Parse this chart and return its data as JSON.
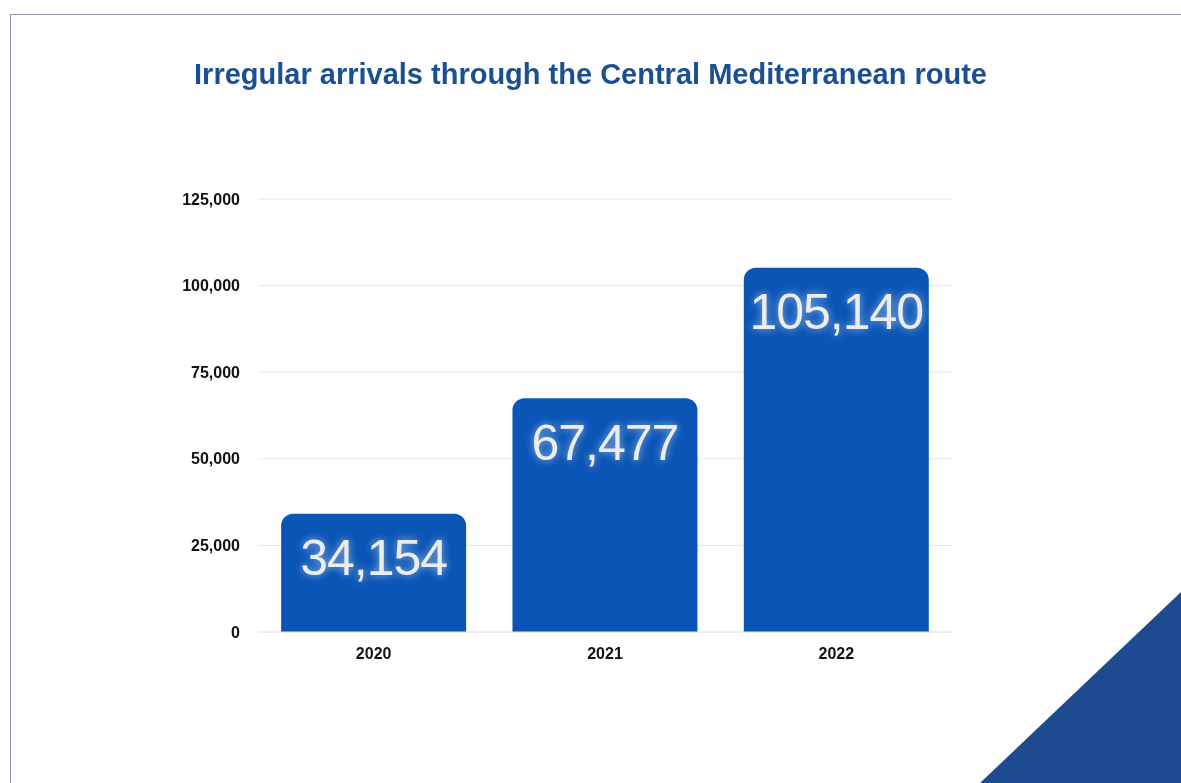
{
  "chart_data": {
    "type": "bar",
    "title": "Irregular arrivals through the Central Mediterranean route",
    "categories": [
      "2020",
      "2021",
      "2022"
    ],
    "values": [
      34154,
      67477,
      105140
    ],
    "value_labels": [
      "34,154",
      "67,477",
      "105,140"
    ],
    "color": "#0a55b6",
    "ylim": [
      0,
      125000
    ],
    "yticks": [
      {
        "value": 0,
        "label": "0"
      },
      {
        "value": 25000,
        "label": "25,000"
      },
      {
        "value": 50000,
        "label": "50,000"
      },
      {
        "value": 75000,
        "label": "75,000"
      },
      {
        "value": 100000,
        "label": "100,000"
      },
      {
        "value": 125000,
        "label": "125,000"
      }
    ],
    "grid": "y"
  }
}
